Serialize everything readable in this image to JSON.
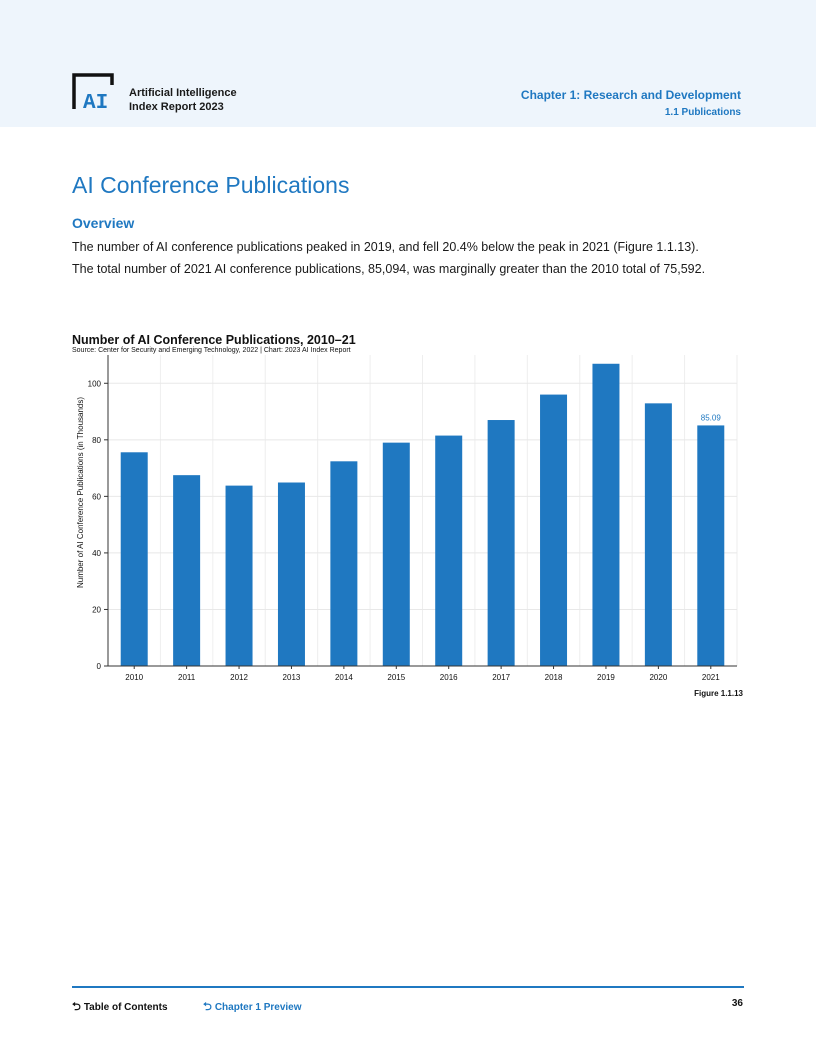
{
  "header": {
    "logo_lines": [
      "Artificial Intelligence",
      "Index Report 2023"
    ],
    "chapter": "Chapter 1: Research and Development",
    "section": "1.1 Publications"
  },
  "page": {
    "title": "AI Conference Publications",
    "overview_heading": "Overview",
    "paragraph_lines": [
      "The number of AI conference publications peaked in 2019, and fell 20.4% below the peak in 2021 (Figure 1.1.13).",
      "The total number of 2021 AI conference publications, 85,094, was marginally greater than the 2010 total of 75,592."
    ],
    "figure_label": "Figure 1.1.13"
  },
  "chart_data": {
    "type": "bar",
    "title": "Number of AI Conference Publications, 2010–21",
    "source": "Source: Center for Security and Emerging Technology, 2022 | Chart: 2023 AI Index Report",
    "xlabel": "",
    "ylabel": "Number of AI Conference Publications (in Thousands)",
    "categories": [
      "2010",
      "2011",
      "2012",
      "2013",
      "2014",
      "2015",
      "2016",
      "2017",
      "2018",
      "2019",
      "2020",
      "2021"
    ],
    "values": [
      75.59,
      67.5,
      63.8,
      64.9,
      72.4,
      79.0,
      81.5,
      87.0,
      96.0,
      106.9,
      92.9,
      85.09
    ],
    "data_labels": [
      {
        "category": "2021",
        "text": "85.09"
      }
    ],
    "yticks": [
      0,
      20,
      40,
      60,
      80,
      100
    ],
    "ylim": [
      0,
      110
    ],
    "grid": true,
    "bar_color": "#1f78c1"
  },
  "footer": {
    "toc": "Table of Contents",
    "preview": "Chapter 1 Preview",
    "page_number": "36",
    "link_icon": "return-arrow-icon"
  }
}
